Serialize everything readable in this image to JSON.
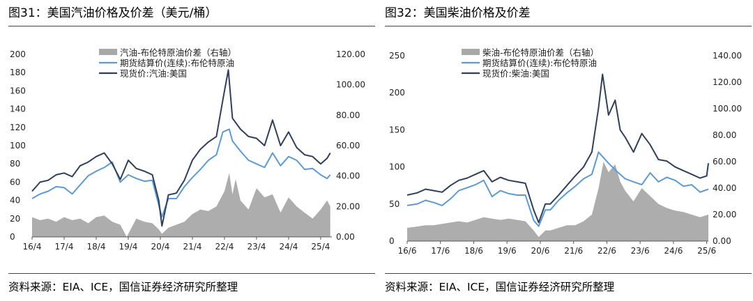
{
  "colors": {
    "spread": "#a9a9a9",
    "futures": "#5b9bd5",
    "spot": "#2e3f5e"
  },
  "source_note": "资料来源：EIA、ICE，国信证券经济研究所整理",
  "panels": [
    {
      "title": "图31：美国汽油价格及价差（美元/桶）",
      "source": "资料来源：EIA、ICE，国信证券经济研究所整理",
      "chart_data": {
        "type": "line",
        "x_domain": [
          2016.25,
          2025.6
        ],
        "xticks": [
          {
            "x": 2016.25,
            "label": "16/4"
          },
          {
            "x": 2017.25,
            "label": "17/4"
          },
          {
            "x": 2018.25,
            "label": "18/4"
          },
          {
            "x": 2019.25,
            "label": "19/4"
          },
          {
            "x": 2020.25,
            "label": "20/4"
          },
          {
            "x": 2021.25,
            "label": "21/4"
          },
          {
            "x": 2022.25,
            "label": "22/4"
          },
          {
            "x": 2023.25,
            "label": "23/4"
          },
          {
            "x": 2024.25,
            "label": "24/4"
          },
          {
            "x": 2025.25,
            "label": "25/4"
          }
        ],
        "ylim_left": [
          0,
          200
        ],
        "yticks_left": [
          0,
          20,
          40,
          60,
          80,
          100,
          120,
          140,
          160,
          180,
          200
        ],
        "ylabels_left": [
          "0",
          "20",
          "40",
          "60",
          "80",
          "100",
          "120",
          "140",
          "160",
          "180",
          "200"
        ],
        "ylim_right": [
          0,
          120
        ],
        "yticks_right": [
          0,
          20,
          40,
          60,
          80,
          100,
          120
        ],
        "ylabels_right": [
          "0.00",
          "20.00",
          "40.00",
          "60.00",
          "80.00",
          "100.00",
          "120.00"
        ],
        "series": [
          {
            "name": "汽油-布伦特原油价差（右轴）",
            "kind": "area",
            "axis": "right",
            "color": "#a9a9a9",
            "x": [
              2016.25,
              2016.5,
              2016.75,
              2017.0,
              2017.25,
              2017.5,
              2017.75,
              2018.0,
              2018.25,
              2018.5,
              2018.75,
              2019.0,
              2019.2,
              2019.5,
              2019.75,
              2020.0,
              2020.2,
              2020.3,
              2020.5,
              2020.75,
              2021.0,
              2021.25,
              2021.5,
              2021.75,
              2022.0,
              2022.25,
              2022.4,
              2022.5,
              2022.6,
              2022.75,
              2023.0,
              2023.25,
              2023.5,
              2023.75,
              2024.0,
              2024.25,
              2024.5,
              2024.75,
              2025.0,
              2025.25,
              2025.45,
              2025.55
            ],
            "y": [
              13,
              11,
              12,
              10,
              13,
              11,
              12,
              9,
              13,
              14,
              10,
              8,
              0,
              12,
              10,
              9,
              5,
              2,
              6,
              8,
              10,
              15,
              18,
              17,
              20,
              30,
              42,
              28,
              38,
              24,
              18,
              32,
              26,
              28,
              16,
              26,
              20,
              16,
              12,
              18,
              24,
              20
            ]
          },
          {
            "name": "期货结算价(连续):布伦特原油",
            "kind": "line",
            "axis": "left",
            "color": "#5b9bd5",
            "x": [
              2016.25,
              2016.5,
              2016.75,
              2017.0,
              2017.25,
              2017.5,
              2017.75,
              2018.0,
              2018.25,
              2018.5,
              2018.75,
              2019.0,
              2019.25,
              2019.5,
              2019.75,
              2020.0,
              2020.2,
              2020.3,
              2020.5,
              2020.75,
              2021.0,
              2021.25,
              2021.5,
              2021.75,
              2022.0,
              2022.2,
              2022.4,
              2022.5,
              2022.75,
              2023.0,
              2023.25,
              2023.5,
              2023.75,
              2024.0,
              2024.25,
              2024.5,
              2024.75,
              2025.0,
              2025.25,
              2025.45,
              2025.55
            ],
            "y": [
              42,
              47,
              50,
              55,
              54,
              47,
              57,
              67,
              72,
              76,
              82,
              60,
              68,
              64,
              61,
              62,
              35,
              22,
              42,
              42,
              55,
              65,
              74,
              84,
              90,
              115,
              118,
              105,
              94,
              84,
              80,
              76,
              92,
              78,
              88,
              84,
              74,
              75,
              68,
              64,
              68
            ]
          },
          {
            "name": "现货价:汽油:美国",
            "kind": "line",
            "axis": "left",
            "color": "#2e3f5e",
            "x": [
              2016.25,
              2016.5,
              2016.75,
              2017.0,
              2017.25,
              2017.5,
              2017.75,
              2018.0,
              2018.25,
              2018.5,
              2018.75,
              2019.0,
              2019.25,
              2019.5,
              2019.75,
              2020.0,
              2020.2,
              2020.3,
              2020.5,
              2020.75,
              2021.0,
              2021.25,
              2021.5,
              2021.75,
              2022.0,
              2022.2,
              2022.37,
              2022.5,
              2022.75,
              2023.0,
              2023.25,
              2023.5,
              2023.75,
              2024.0,
              2024.25,
              2024.5,
              2024.75,
              2025.0,
              2025.25,
              2025.45,
              2025.55
            ],
            "y": [
              50,
              60,
              62,
              68,
              70,
              66,
              78,
              82,
              88,
              92,
              80,
              63,
              84,
              75,
              72,
              68,
              40,
              12,
              46,
              48,
              62,
              84,
              96,
              104,
              110,
              150,
              183,
              130,
              118,
              110,
              108,
              100,
              128,
              100,
              115,
              98,
              90,
              88,
              80,
              86,
              92
            ]
          }
        ]
      }
    },
    {
      "title": "图32：美国柴油价格及价差",
      "source": "资料来源：EIA、ICE，国信证券经济研究所整理",
      "chart_data": {
        "type": "line",
        "x_domain": [
          2016.45,
          2025.5
        ],
        "xticks": [
          {
            "x": 2016.45,
            "label": "16/6"
          },
          {
            "x": 2017.45,
            "label": "17/6"
          },
          {
            "x": 2018.45,
            "label": "18/6"
          },
          {
            "x": 2019.45,
            "label": "19/6"
          },
          {
            "x": 2020.45,
            "label": "20/6"
          },
          {
            "x": 2021.45,
            "label": "21/6"
          },
          {
            "x": 2022.45,
            "label": "22/6"
          },
          {
            "x": 2023.45,
            "label": "23/6"
          },
          {
            "x": 2024.45,
            "label": "24/6"
          },
          {
            "x": 2025.45,
            "label": "25/6"
          }
        ],
        "ylim_left": [
          0,
          250
        ],
        "yticks_left": [
          0,
          50,
          100,
          150,
          200,
          250
        ],
        "ylabels_left": [
          "0",
          "50",
          "100",
          "150",
          "200",
          "250"
        ],
        "ylim_right": [
          0,
          140
        ],
        "yticks_right": [
          0,
          20,
          40,
          60,
          80,
          100,
          120,
          140
        ],
        "ylabels_right": [
          "0.00",
          "20.00",
          "40.00",
          "60.00",
          "80.00",
          "100.00",
          "120.00",
          "140.00"
        ],
        "series": [
          {
            "name": "柴油-布伦特原油价差（右轴）",
            "kind": "area",
            "axis": "right",
            "color": "#a9a9a9",
            "x": [
              2016.45,
              2016.75,
              2017.0,
              2017.25,
              2017.5,
              2017.75,
              2018.0,
              2018.25,
              2018.5,
              2018.75,
              2019.0,
              2019.25,
              2019.5,
              2019.75,
              2020.0,
              2020.25,
              2020.4,
              2020.6,
              2020.75,
              2021.0,
              2021.25,
              2021.5,
              2021.75,
              2022.0,
              2022.2,
              2022.35,
              2022.5,
              2022.7,
              2022.85,
              2023.0,
              2023.25,
              2023.5,
              2023.75,
              2024.0,
              2024.25,
              2024.5,
              2024.75,
              2025.0,
              2025.25,
              2025.5
            ],
            "y": [
              10,
              11,
              12,
              12,
              13,
              14,
              15,
              14,
              16,
              18,
              17,
              16,
              17,
              16,
              15,
              8,
              3,
              8,
              8,
              10,
              12,
              12,
              15,
              20,
              40,
              60,
              52,
              58,
              45,
              38,
              30,
              40,
              34,
              28,
              25,
              23,
              22,
              20,
              18,
              20
            ]
          },
          {
            "name": "期货结算价(连续):布伦特原油",
            "kind": "line",
            "axis": "left",
            "color": "#5b9bd5",
            "x": [
              2016.45,
              2016.75,
              2017.0,
              2017.25,
              2017.5,
              2017.75,
              2018.0,
              2018.25,
              2018.5,
              2018.75,
              2019.0,
              2019.25,
              2019.5,
              2019.75,
              2020.0,
              2020.25,
              2020.4,
              2020.6,
              2020.75,
              2021.0,
              2021.25,
              2021.5,
              2021.75,
              2022.0,
              2022.2,
              2022.5,
              2022.75,
              2023.0,
              2023.25,
              2023.5,
              2023.75,
              2024.0,
              2024.25,
              2024.5,
              2024.75,
              2025.0,
              2025.25,
              2025.5
            ],
            "y": [
              48,
              50,
              55,
              52,
              48,
              57,
              68,
              72,
              76,
              82,
              60,
              68,
              64,
              62,
              62,
              28,
              20,
              42,
              42,
              55,
              65,
              74,
              84,
              90,
              120,
              105,
              94,
              84,
              80,
              76,
              92,
              80,
              86,
              82,
              74,
              76,
              66,
              70
            ]
          },
          {
            "name": "现货价:柴油:美国",
            "kind": "line",
            "axis": "left",
            "color": "#2e3f5e",
            "x": [
              2016.45,
              2016.75,
              2017.0,
              2017.25,
              2017.5,
              2017.75,
              2018.0,
              2018.25,
              2018.5,
              2018.75,
              2019.0,
              2019.25,
              2019.5,
              2019.75,
              2020.0,
              2020.25,
              2020.4,
              2020.6,
              2020.75,
              2021.0,
              2021.25,
              2021.5,
              2021.75,
              2022.0,
              2022.2,
              2022.32,
              2022.5,
              2022.7,
              2022.85,
              2023.0,
              2023.25,
              2023.5,
              2023.75,
              2024.0,
              2024.25,
              2024.5,
              2024.75,
              2025.0,
              2025.25,
              2025.45,
              2025.5
            ],
            "y": [
              62,
              65,
              70,
              68,
              66,
              75,
              82,
              85,
              90,
              95,
              80,
              86,
              82,
              80,
              78,
              42,
              25,
              50,
              50,
              62,
              75,
              88,
              100,
              120,
              180,
              225,
              170,
              190,
              150,
              140,
              120,
              145,
              130,
              110,
              108,
              100,
              95,
              90,
              85,
              88,
              105
            ]
          }
        ]
      }
    }
  ]
}
